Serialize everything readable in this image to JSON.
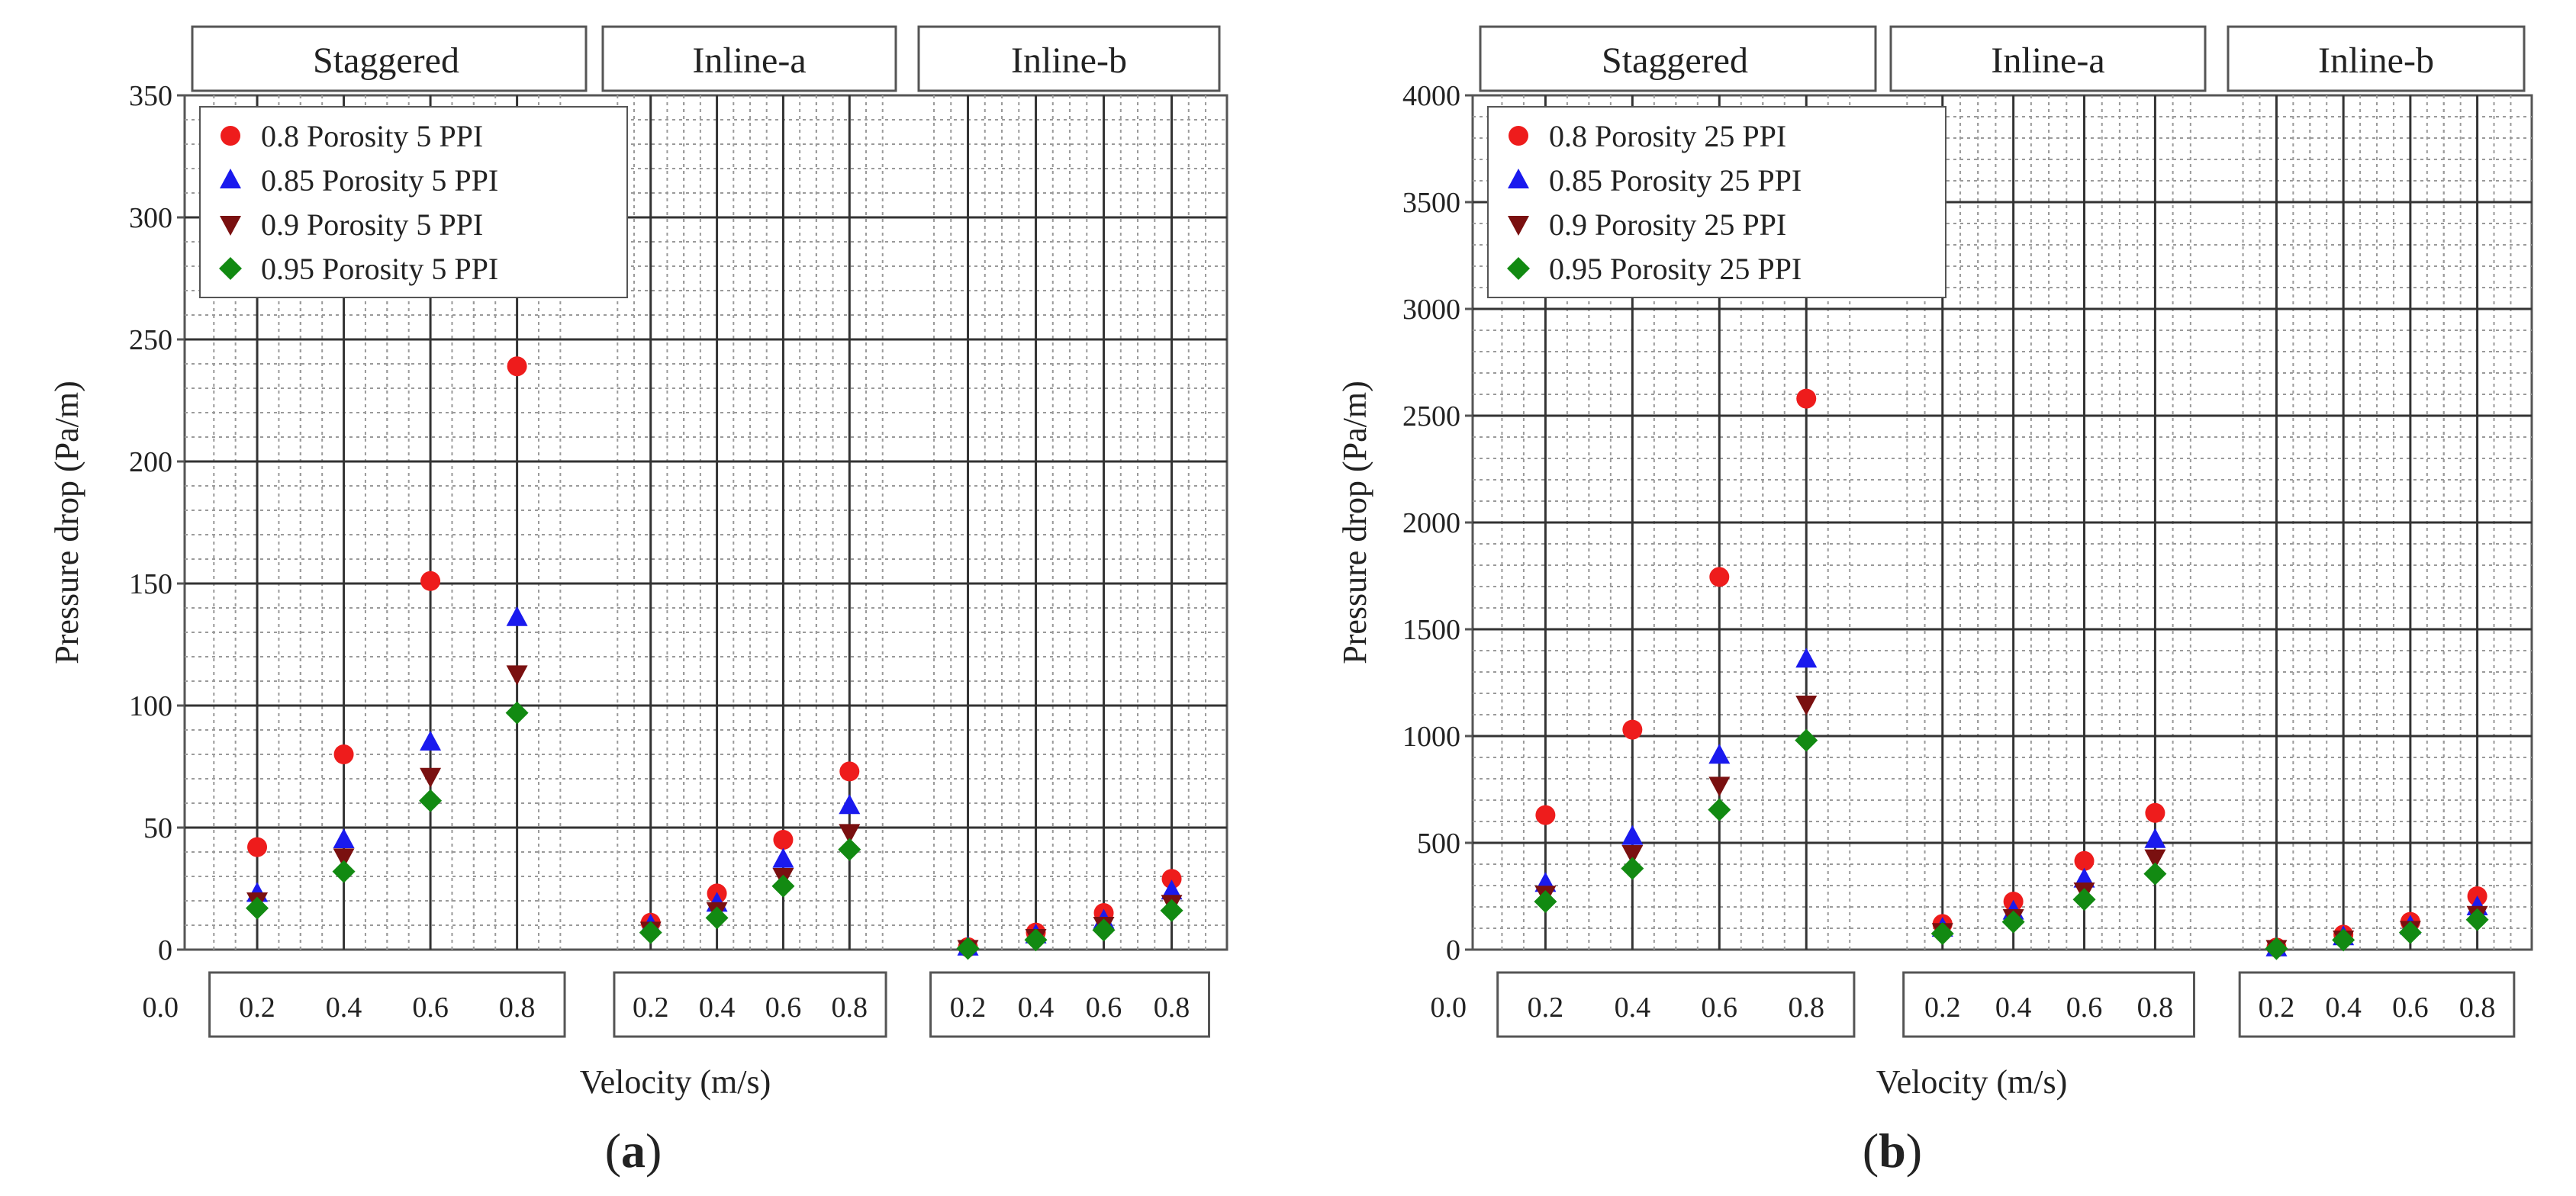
{
  "chart_data": [
    {
      "type": "scatter",
      "panel_label": "a",
      "xlabel": "Velocity (m/s)",
      "ylabel": "Pressure drop (Pa/m)",
      "ylim": [
        0,
        350
      ],
      "yticks": [
        "0",
        "50",
        "100",
        "150",
        "200",
        "250",
        "300",
        "350"
      ],
      "x_origin_tick": "0.0",
      "grid": true,
      "legend_position": "top-left",
      "groups": [
        {
          "name": "Staggered",
          "x": [
            "0.2",
            "0.4",
            "0.6",
            "0.8"
          ],
          "series": [
            {
              "name": "0.8  Porosity 5 PPI",
              "values": [
                42,
                80,
                151,
                239
              ]
            },
            {
              "name": "0.85 Porosity 5 PPI",
              "values": [
                23,
                45,
                85,
                136
              ]
            },
            {
              "name": "0.9  Porosity 5 PPI",
              "values": [
                20,
                38,
                71,
                113
              ]
            },
            {
              "name": "0.95 Porosity 5 PPI",
              "values": [
                17,
                32,
                61,
                97
              ]
            }
          ]
        },
        {
          "name": "Inline-a",
          "x": [
            "0.2",
            "0.4",
            "0.6",
            "0.8"
          ],
          "series": [
            {
              "name": "0.8  Porosity 5 PPI",
              "values": [
                11,
                23,
                45,
                73
              ]
            },
            {
              "name": "0.85 Porosity 5 PPI",
              "values": [
                10,
                19,
                37,
                59
              ]
            },
            {
              "name": "0.9  Porosity 5 PPI",
              "values": [
                8,
                16,
                30,
                48
              ]
            },
            {
              "name": "0.95 Porosity 5 PPI",
              "values": [
                7,
                13,
                26,
                41
              ]
            }
          ]
        },
        {
          "name": "Inline-b",
          "x": [
            "0.2",
            "0.4",
            "0.6",
            "0.8"
          ],
          "series": [
            {
              "name": "0.8  Porosity 5 PPI",
              "values": [
                1,
                7,
                15,
                29
              ]
            },
            {
              "name": "0.85 Porosity 5 PPI",
              "values": [
                1,
                6,
                12,
                24
              ]
            },
            {
              "name": "0.9  Porosity 5 PPI",
              "values": [
                0.5,
                5,
                10,
                19
              ]
            },
            {
              "name": "0.95 Porosity 5 PPI",
              "values": [
                0.5,
                4,
                8,
                16
              ]
            }
          ]
        }
      ]
    },
    {
      "type": "scatter",
      "panel_label": "b",
      "xlabel": "Velocity (m/s)",
      "ylabel": "Pressure drop (Pa/m)",
      "ylim": [
        0,
        4000
      ],
      "yticks": [
        "0",
        "500",
        "1000",
        "1500",
        "2000",
        "2500",
        "3000",
        "3500",
        "4000"
      ],
      "x_origin_tick": "0.0",
      "grid": true,
      "legend_position": "top-left",
      "groups": [
        {
          "name": "Staggered",
          "x": [
            "0.2",
            "0.4",
            "0.6",
            "0.8"
          ],
          "series": [
            {
              "name": "0.8  Porosity 25 PPI",
              "values": [
                630,
                1030,
                1745,
                2580
              ]
            },
            {
              "name": "0.85 Porosity 25 PPI",
              "values": [
                310,
                530,
                910,
                1360
              ]
            },
            {
              "name": "0.9  Porosity 25 PPI",
              "values": [
                260,
                450,
                770,
                1150
              ]
            },
            {
              "name": "0.95 Porosity 25 PPI",
              "values": [
                225,
                380,
                655,
                980
              ]
            }
          ]
        },
        {
          "name": "Inline-a",
          "x": [
            "0.2",
            "0.4",
            "0.6",
            "0.8"
          ],
          "series": [
            {
              "name": "0.8  Porosity 25 PPI",
              "values": [
                120,
                225,
                415,
                640
              ]
            },
            {
              "name": "0.85 Porosity 25 PPI",
              "values": [
                100,
                180,
                330,
                515
              ]
            },
            {
              "name": "0.9  Porosity 25 PPI",
              "values": [
                85,
                150,
                275,
                430
              ]
            },
            {
              "name": "0.95 Porosity 25 PPI",
              "values": [
                75,
                130,
                235,
                355
              ]
            }
          ]
        },
        {
          "name": "Inline-b",
          "x": [
            "0.2",
            "0.4",
            "0.6",
            "0.8"
          ],
          "series": [
            {
              "name": "0.8  Porosity 25 PPI",
              "values": [
                10,
                70,
                130,
                250
              ]
            },
            {
              "name": "0.85 Porosity 25 PPI",
              "values": [
                8,
                60,
                110,
                200
              ]
            },
            {
              "name": "0.9  Porosity 25 PPI",
              "values": [
                6,
                50,
                95,
                165
              ]
            },
            {
              "name": "0.95 Porosity 25 PPI",
              "values": [
                5,
                45,
                80,
                140
              ]
            }
          ]
        }
      ]
    }
  ],
  "series_styles": [
    {
      "marker": "circle",
      "color": "#ee1c1c"
    },
    {
      "marker": "triangle-up",
      "color": "#1a1aee"
    },
    {
      "marker": "triangle-down",
      "color": "#7a1010"
    },
    {
      "marker": "diamond",
      "color": "#128a12"
    }
  ],
  "colors": {
    "grid_major": "#333333",
    "grid_minor": "#9a9a9a",
    "frame": "#555555"
  }
}
